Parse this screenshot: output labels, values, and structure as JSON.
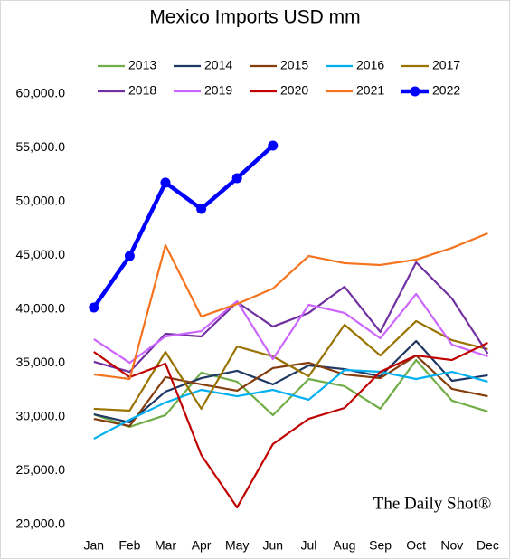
{
  "chart_data": {
    "type": "line",
    "title": "Mexico Imports USD mm",
    "watermark": "The Daily Shot®",
    "categories": [
      "Jan",
      "Feb",
      "Mar",
      "Apr",
      "May",
      "Jun",
      "Jul",
      "Aug",
      "Sep",
      "Oct",
      "Nov",
      "Dec"
    ],
    "ylim": [
      20000,
      60000
    ],
    "yticks": [
      {
        "value": 20000,
        "label": "20,000.0"
      },
      {
        "value": 25000,
        "label": "25,000.0"
      },
      {
        "value": 30000,
        "label": "30,000.0"
      },
      {
        "value": 35000,
        "label": "35,000.0"
      },
      {
        "value": 40000,
        "label": "40,000.0"
      },
      {
        "value": 45000,
        "label": "45,000.0"
      },
      {
        "value": 50000,
        "label": "50,000.0"
      },
      {
        "value": 55000,
        "label": "55,000.0"
      },
      {
        "value": 60000,
        "label": "60,000.0"
      }
    ],
    "grid": false,
    "legend": "top",
    "series": [
      {
        "name": "2013",
        "color": "#70ad47",
        "values": [
          30250,
          29080,
          30170,
          34120,
          33280,
          30170,
          33530,
          32860,
          30760,
          35290,
          31520,
          30510
        ]
      },
      {
        "name": "2014",
        "color": "#1f3864",
        "values": [
          30250,
          29500,
          32360,
          33610,
          34290,
          33030,
          34790,
          34450,
          33780,
          37060,
          33360,
          33870
        ]
      },
      {
        "name": "2015",
        "color": "#843c0c",
        "values": [
          29830,
          29160,
          33700,
          33030,
          32440,
          34540,
          35040,
          33950,
          33610,
          35710,
          32610,
          31930
        ]
      },
      {
        "name": "2016",
        "color": "#00b0f0",
        "values": [
          27980,
          29750,
          31350,
          32520,
          31930,
          32520,
          31600,
          34370,
          34200,
          33530,
          34200,
          33280
        ]
      },
      {
        "name": "2017",
        "color": "#997300",
        "values": [
          30760,
          30590,
          36050,
          30760,
          36550,
          35630,
          33780,
          38570,
          35710,
          38910,
          37140,
          36300
        ]
      },
      {
        "name": "2018",
        "color": "#7030a0",
        "values": [
          35130,
          34200,
          37730,
          37480,
          40670,
          38400,
          39670,
          42100,
          37900,
          44370,
          41010,
          35880
        ]
      },
      {
        "name": "2019",
        "color": "#cc66ff",
        "values": [
          37230,
          35040,
          37480,
          37980,
          40760,
          35380,
          40420,
          39670,
          37310,
          41430,
          36720,
          35630
        ]
      },
      {
        "name": "2020",
        "color": "#c00000",
        "values": [
          36050,
          33700,
          34960,
          26470,
          21600,
          27480,
          29830,
          30840,
          34200,
          35710,
          35290,
          36890
        ]
      },
      {
        "name": "2021",
        "color": "#f4731e",
        "values": [
          33950,
          33530,
          45970,
          39330,
          40500,
          41930,
          44960,
          44290,
          44120,
          44620,
          45710,
          47060
        ]
      },
      {
        "name": "2022",
        "color": "#0000ff",
        "marker": "circle",
        "values": [
          40170,
          44960,
          51770,
          49330,
          52190,
          55210,
          null,
          null,
          null,
          null,
          null,
          null
        ]
      }
    ]
  }
}
